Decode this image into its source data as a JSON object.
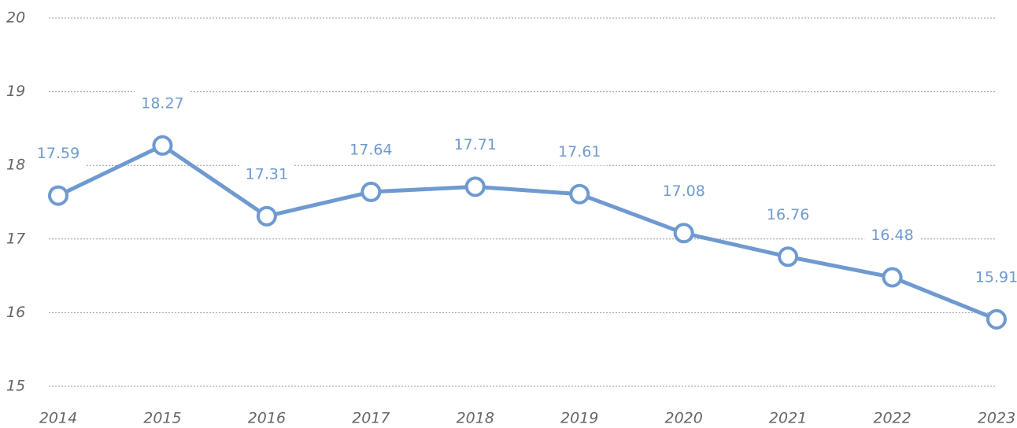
{
  "chart_data": {
    "type": "line",
    "categories": [
      "2014",
      "2015",
      "2016",
      "2017",
      "2018",
      "2019",
      "2020",
      "2021",
      "2022",
      "2023"
    ],
    "series": [
      {
        "name": null,
        "color": "#6e9ad0",
        "values": [
          17.59,
          18.27,
          17.31,
          17.64,
          17.71,
          17.61,
          17.08,
          16.76,
          16.48,
          15.91
        ]
      }
    ],
    "ylim": [
      15,
      20
    ],
    "yticks": [
      15,
      16,
      17,
      18,
      19,
      20
    ],
    "grid": true
  }
}
